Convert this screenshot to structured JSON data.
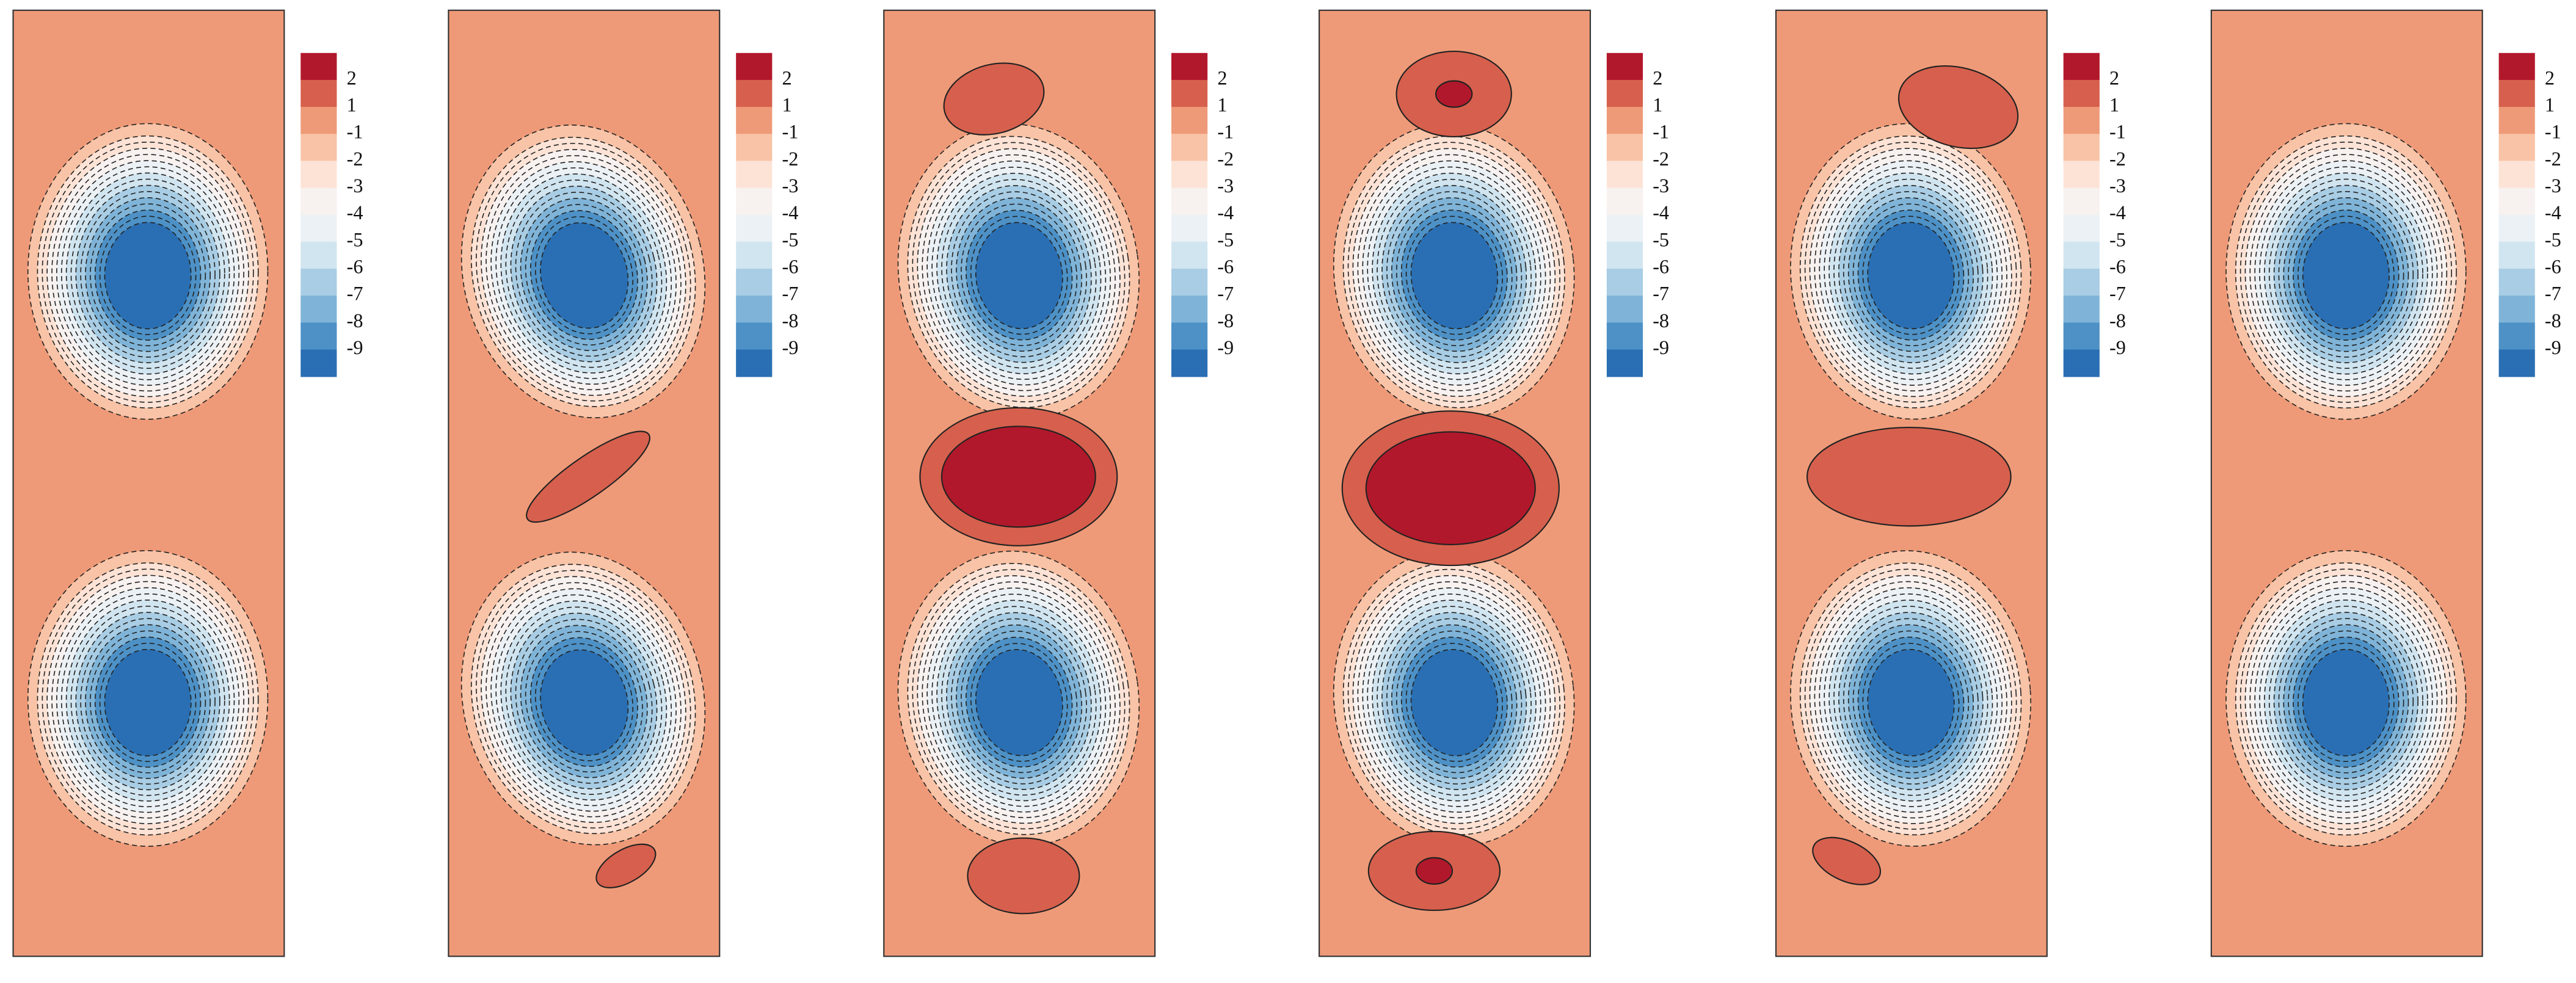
{
  "chart_data": [
    {
      "type": "contour",
      "colorbar_ticks": [
        2,
        1,
        -1,
        -2,
        -3,
        -4,
        -5,
        -6,
        -7,
        -8,
        -9
      ],
      "colors": [
        "#b2182b",
        "#d6604d",
        "#ee9a78",
        "#f8c3a6",
        "#fde3d6",
        "#f7f1ef",
        "#ebf1f5",
        "#d1e5f0",
        "#a8cde4",
        "#7fb4d8",
        "#4d91c6",
        "#2a6fb3"
      ]
    },
    {
      "type": "contour",
      "colorbar_ticks": [
        2,
        1,
        -1,
        -2,
        -3,
        -4,
        -5,
        -6,
        -7,
        -8,
        -9
      ],
      "colors": [
        "#b2182b",
        "#d6604d",
        "#ee9a78",
        "#f8c3a6",
        "#fde3d6",
        "#f7f1ef",
        "#ebf1f5",
        "#d1e5f0",
        "#a8cde4",
        "#7fb4d8",
        "#4d91c6",
        "#2a6fb3"
      ]
    },
    {
      "type": "contour",
      "colorbar_ticks": [
        2,
        1,
        -1,
        -2,
        -3,
        -4,
        -5,
        -6,
        -7,
        -8,
        -9
      ],
      "colors": [
        "#b2182b",
        "#d6604d",
        "#ee9a78",
        "#f8c3a6",
        "#fde3d6",
        "#f7f1ef",
        "#ebf1f5",
        "#d1e5f0",
        "#a8cde4",
        "#7fb4d8",
        "#4d91c6",
        "#2a6fb3"
      ]
    },
    {
      "type": "contour",
      "colorbar_ticks": [
        2,
        1,
        -1,
        -2,
        -3,
        -4,
        -5,
        -6,
        -7,
        -8,
        -9
      ],
      "colors": [
        "#b2182b",
        "#d6604d",
        "#ee9a78",
        "#f8c3a6",
        "#fde3d6",
        "#f7f1ef",
        "#ebf1f5",
        "#d1e5f0",
        "#a8cde4",
        "#7fb4d8",
        "#4d91c6",
        "#2a6fb3"
      ]
    },
    {
      "type": "contour",
      "colorbar_ticks": [
        2,
        1,
        -1,
        -2,
        -3,
        -4,
        -5,
        -6,
        -7,
        -8,
        -9
      ],
      "colors": [
        "#b2182b",
        "#d6604d",
        "#ee9a78",
        "#f8c3a6",
        "#fde3d6",
        "#f7f1ef",
        "#ebf1f5",
        "#d1e5f0",
        "#a8cde4",
        "#7fb4d8",
        "#4d91c6",
        "#2a6fb3"
      ]
    },
    {
      "type": "contour",
      "colorbar_ticks": [
        2,
        1,
        -1,
        -2,
        -3,
        -4,
        -5,
        -6,
        -7,
        -8,
        -9
      ],
      "colors": [
        "#b2182b",
        "#d6604d",
        "#ee9a78",
        "#f8c3a6",
        "#fde3d6",
        "#f7f1ef",
        "#ebf1f5",
        "#d1e5f0",
        "#a8cde4",
        "#7fb4d8",
        "#4d91c6",
        "#2a6fb3"
      ]
    }
  ]
}
